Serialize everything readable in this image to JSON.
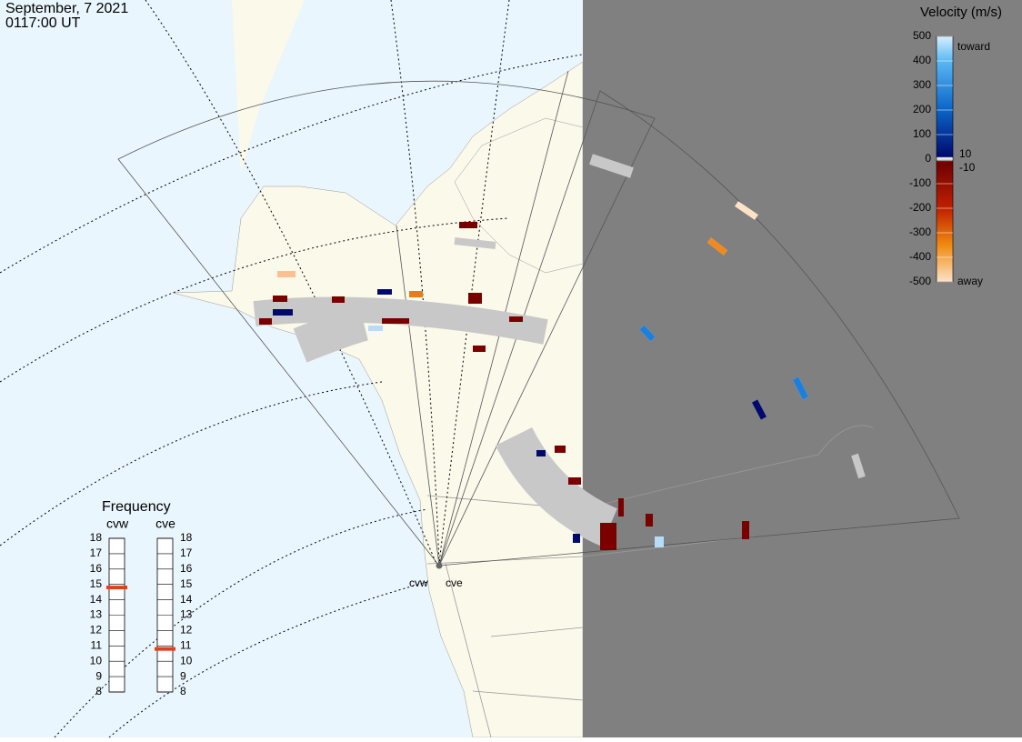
{
  "header": {
    "date": "September, 7 2021",
    "time": "0117:00 UT"
  },
  "colorbar": {
    "title": "Velocity (m/s)",
    "ticks": [
      500,
      400,
      300,
      200,
      100,
      0,
      -100,
      -200,
      -300,
      -400,
      -500
    ],
    "inner_ticks": [
      10,
      -10
    ],
    "top_label": "toward",
    "bottom_label": "away"
  },
  "frequency": {
    "title": "Frequency",
    "ylim": [
      8,
      18
    ],
    "ticks": [
      18,
      17,
      16,
      15,
      14,
      13,
      12,
      11,
      10,
      9,
      8
    ],
    "radars": [
      {
        "name": "cvw",
        "value": 14.8
      },
      {
        "name": "cve",
        "value": 10.8
      }
    ]
  },
  "stations": [
    "cvw",
    "cve"
  ]
}
